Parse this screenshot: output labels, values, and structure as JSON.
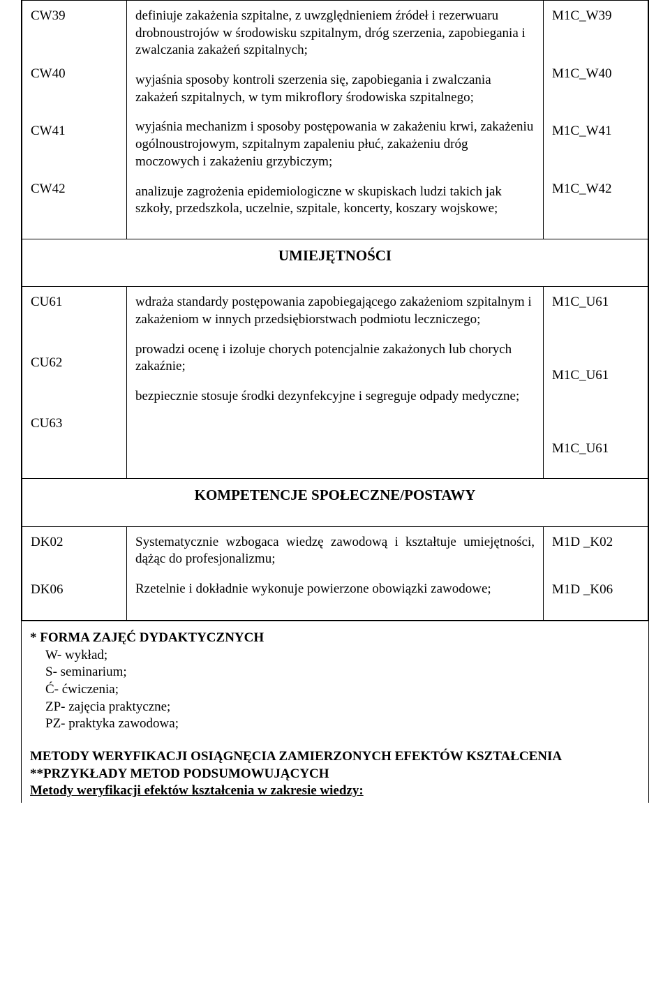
{
  "section1": {
    "rows": [
      {
        "code": "CW39",
        "desc": "definiuje zakażenia szpitalne, z uwzględnieniem źródeł i rezerwuaru drobnoustrojów w środowisku szpitalnym, dróg szerzenia, zapobiegania i zwalczania zakażeń szpitalnych;",
        "ref": "M1C_W39"
      },
      {
        "code": "CW40",
        "desc": "wyjaśnia sposoby kontroli szerzenia się, zapobiegania i zwalczania zakażeń szpitalnych, w tym mikroflory środowiska szpitalnego;",
        "ref": "M1C_W40"
      },
      {
        "code": "CW41",
        "desc": "wyjaśnia mechanizm i sposoby postępowania w zakażeniu krwi, zakażeniu ogólnoustrojowym, szpitalnym zapaleniu płuć, zakażeniu dróg moczowych i zakażeniu grzybiczym;",
        "ref": "M1C_W41"
      },
      {
        "code": "CW42",
        "desc": "analizuje zagrożenia epidemiologiczne w skupiskach ludzi takich jak szkoły, przedszkola, uczelnie, szpitale, koncerty, koszary wojskowe;",
        "ref": "M1C_W42"
      }
    ]
  },
  "section2": {
    "heading": "UMIEJĘTNOŚCI",
    "rows": [
      {
        "code": "CU61",
        "desc": "wdraża standardy postępowania zapobiegającego zakażeniom szpitalnym i zakażeniom w innych przedsiębiorstwach podmiotu leczniczego;",
        "ref": "M1C_U61"
      },
      {
        "code": "CU62",
        "desc": "prowadzi ocenę i izoluje chorych potencjalnie zakażonych lub chorych zakaźnie;",
        "ref": "M1C_U61"
      },
      {
        "code": "CU63",
        "desc": "bezpiecznie stosuje środki dezynfekcyjne i segreguje odpady medyczne;",
        "ref": "M1C_U61"
      }
    ]
  },
  "section3": {
    "heading": "KOMPETENCJE SPOŁECZNE/POSTAWY",
    "rows": [
      {
        "code": "DK02",
        "desc": "Systematycznie wzbogaca wiedzę zawodową i kształtuje umiejętności, dążąc do profesjonalizmu;",
        "ref": "M1D _K02"
      },
      {
        "code": "DK06",
        "desc": "Rzetelnie i dokładnie wykonuje powierzone obowiązki zawodowe;",
        "ref": "M1D _K06"
      }
    ]
  },
  "footer": {
    "forma_title": "* FORMA ZAJĘĆ DYDAKTYCZNYCH",
    "forma_items": [
      "W- wykład;",
      "S- seminarium;",
      "Ć- ćwiczenia;",
      "ZP- zajęcia praktyczne;",
      "PZ- praktyka zawodowa;"
    ],
    "methods_title": "METODY WERYFIKACJI OSIĄGNĘCIA ZAMIERZONYCH EFEKTÓW KSZTAŁCENIA",
    "examples_title": "**PRZYKŁADY METOD PODSUMOWUJĄCYCH",
    "ver_title": "Metody weryfikacji efektów kształcenia w zakresie wiedzy:"
  }
}
